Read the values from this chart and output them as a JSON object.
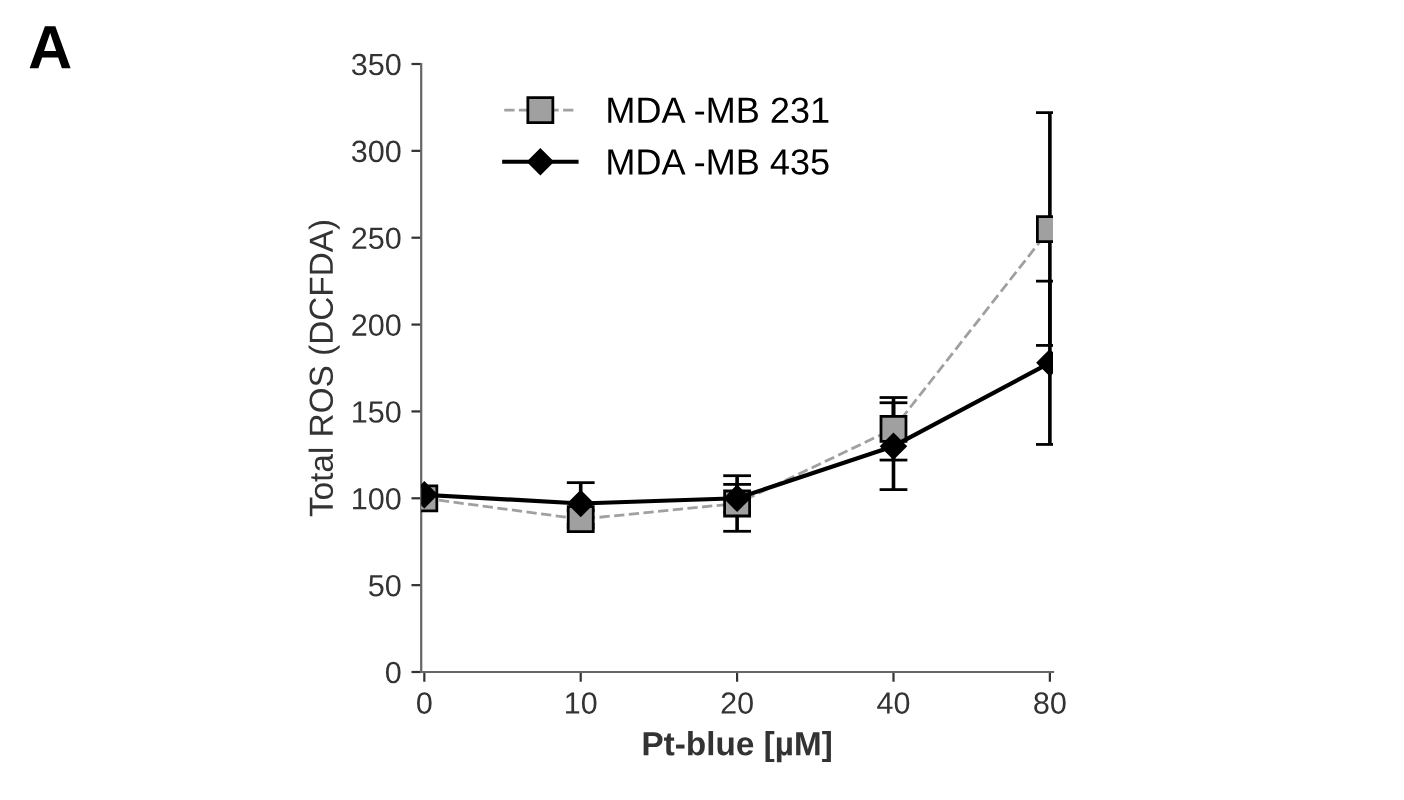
{
  "chart_data": {
    "type": "line",
    "title": "A",
    "xlabel": "Pt-blue [µM]",
    "ylabel": "Total ROS (DCFDA)",
    "categories": [
      "0",
      "10",
      "20",
      "40",
      "80"
    ],
    "series": [
      {
        "name": "MDA -MB 231",
        "color": "#a0a0a0",
        "marker": "square",
        "line_style": "dashed",
        "values": [
          100,
          88,
          97,
          140,
          255
        ],
        "errors": [
          null,
          5,
          16,
          18,
          67
        ]
      },
      {
        "name": "MDA -MB 435",
        "color": "#000000",
        "marker": "diamond",
        "line_style": "solid",
        "values": [
          102,
          97,
          100,
          130,
          178
        ],
        "errors": [
          null,
          12,
          8,
          25,
          47
        ]
      }
    ],
    "ylim": [
      0,
      350
    ],
    "yticks": [
      0,
      50,
      100,
      150,
      200,
      250,
      300,
      350
    ],
    "grid": false,
    "legend": "top left"
  }
}
